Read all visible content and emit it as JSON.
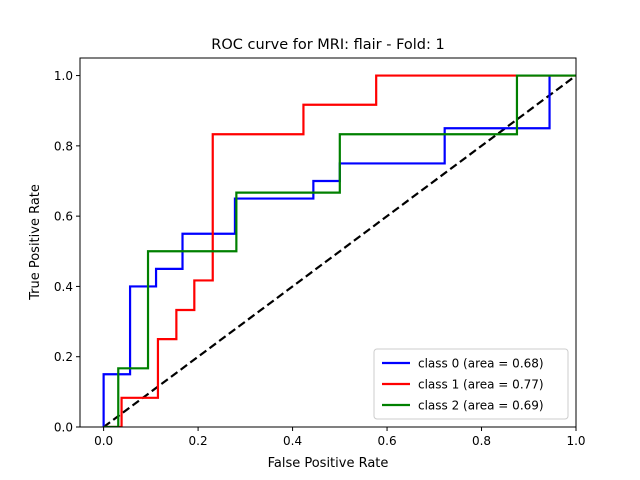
{
  "chart_data": {
    "type": "line",
    "title": "ROC curve for MRI: flair - Fold: 1",
    "xlabel": "False Positive Rate",
    "ylabel": "True Positive Rate",
    "xlim": [
      -0.05,
      1.0
    ],
    "ylim": [
      0.0,
      1.05
    ],
    "xticks": [
      0.0,
      0.2,
      0.4,
      0.6,
      0.8,
      1.0
    ],
    "xtick_labels": [
      "0.0",
      "0.2",
      "0.4",
      "0.6",
      "0.8",
      "1.0"
    ],
    "yticks": [
      0.0,
      0.2,
      0.4,
      0.6,
      0.8,
      1.0
    ],
    "ytick_labels": [
      "0.0",
      "0.2",
      "0.4",
      "0.6",
      "0.8",
      "1.0"
    ],
    "grid": false,
    "legend_position": "lower-right",
    "series": [
      {
        "name": "class 0 (area = 0.68)",
        "color": "#0000ff",
        "x": [
          0.0,
          0.0,
          0.056,
          0.056,
          0.111,
          0.111,
          0.167,
          0.167,
          0.278,
          0.278,
          0.444,
          0.444,
          0.5,
          0.5,
          0.722,
          0.722,
          0.944,
          0.944
        ],
        "y": [
          0.0,
          0.15,
          0.15,
          0.4,
          0.4,
          0.45,
          0.45,
          0.55,
          0.55,
          0.65,
          0.65,
          0.7,
          0.7,
          0.75,
          0.75,
          0.85,
          0.85,
          1.0
        ]
      },
      {
        "name": "class 1 (area = 0.77)",
        "color": "#ff0000",
        "x": [
          0.0,
          0.038,
          0.038,
          0.115,
          0.115,
          0.154,
          0.154,
          0.192,
          0.192,
          0.231,
          0.231,
          0.423,
          0.423,
          0.577,
          0.577,
          1.0
        ],
        "y": [
          0.0,
          0.0,
          0.083,
          0.083,
          0.25,
          0.25,
          0.333,
          0.333,
          0.417,
          0.417,
          0.833,
          0.833,
          0.917,
          0.917,
          1.0,
          1.0
        ]
      },
      {
        "name": "class 2 (area = 0.69)",
        "color": "#008000",
        "x": [
          0.0,
          0.031,
          0.031,
          0.094,
          0.094,
          0.281,
          0.281,
          0.5,
          0.5,
          0.875,
          0.875,
          1.0
        ],
        "y": [
          0.0,
          0.0,
          0.167,
          0.167,
          0.5,
          0.5,
          0.667,
          0.667,
          0.833,
          0.833,
          1.0,
          1.0
        ]
      }
    ],
    "reference_line": {
      "color": "#000000",
      "style": "dashed",
      "x": [
        0.0,
        1.0
      ],
      "y": [
        0.0,
        1.0
      ]
    }
  }
}
